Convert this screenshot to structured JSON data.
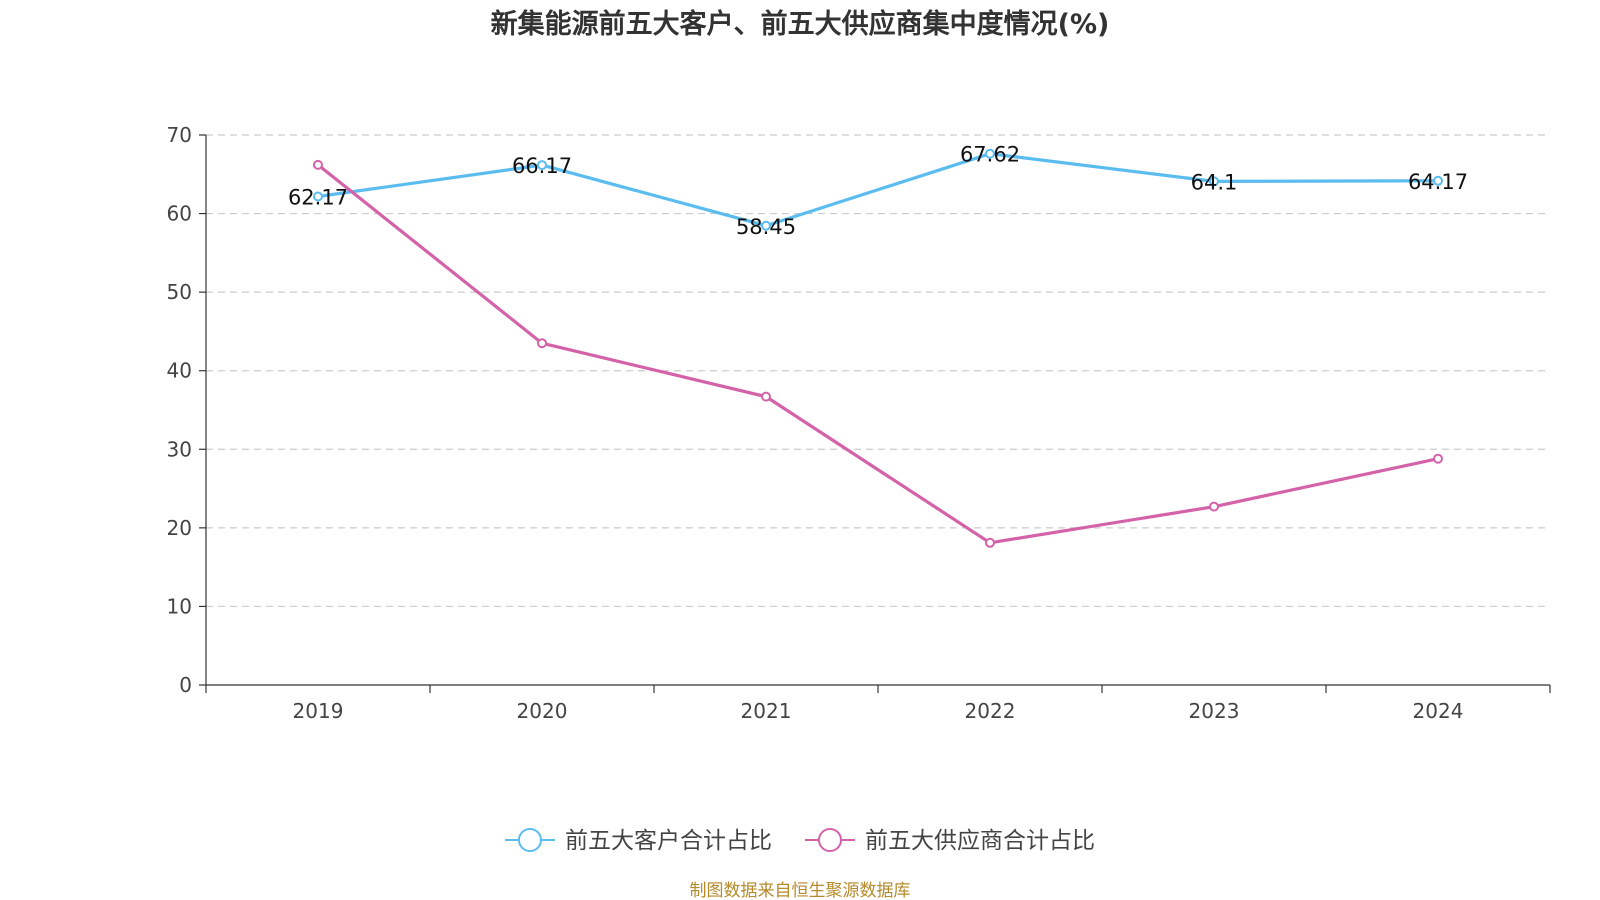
{
  "chart_data": {
    "type": "line",
    "title": "新集能源前五大客户、前五大供应商集中度情况(%)",
    "categories": [
      "2019",
      "2020",
      "2021",
      "2022",
      "2023",
      "2024"
    ],
    "ylim": [
      0,
      70
    ],
    "yticks": [
      0,
      10,
      20,
      30,
      40,
      50,
      60,
      70
    ],
    "grid": true,
    "legend_position": "bottom-center",
    "series": [
      {
        "name": "前五大客户合计占比",
        "color": "#5bbcf0",
        "values": [
          62.17,
          66.17,
          58.45,
          67.62,
          64.1,
          64.17
        ],
        "labels": [
          "62.17",
          "66.17",
          "58.45",
          "67.62",
          "64.1",
          "64.17"
        ]
      },
      {
        "name": "前五大供应商合计占比",
        "color": "#d462a8",
        "values": [
          66.2,
          43.5,
          36.7,
          18.1,
          22.7,
          28.8
        ]
      }
    ],
    "source": "制图数据来自恒生聚源数据库"
  }
}
